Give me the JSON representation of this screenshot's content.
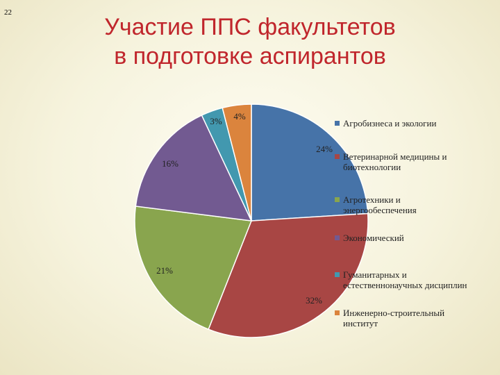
{
  "slide": {
    "number": "22",
    "title_line1": "Участие ППС факультетов",
    "title_line2": "в подготовке аспирантов"
  },
  "chart_data": {
    "type": "pie",
    "title": "",
    "legend_position": "right",
    "start_angle_deg": 0,
    "direction": "clockwise",
    "slices": [
      {
        "name": "Агробизнеса и экологии",
        "value": 24,
        "label": "24%",
        "color": "#4673a8"
      },
      {
        "name": "Ветеринарной медицины и биотехнологии",
        "value": 32,
        "label": "32%",
        "color": "#a84644"
      },
      {
        "name": "Агротехники и энергообеспечения",
        "value": 21,
        "label": "21%",
        "color": "#89a54e"
      },
      {
        "name": "Экономический",
        "value": 16,
        "label": "16%",
        "color": "#725a91"
      },
      {
        "name": "Гуманитарных и естественнонаучных дисциплин",
        "value": 3,
        "label": "3%",
        "color": "#4298af"
      },
      {
        "name": "Инженерно-строительный институт",
        "value": 4,
        "label": "4%",
        "color": "#db843d"
      }
    ]
  }
}
